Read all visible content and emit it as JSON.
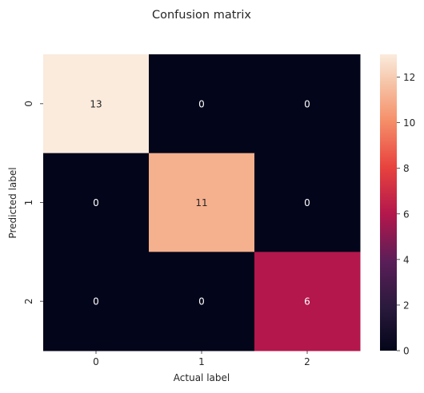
{
  "chart_data": {
    "type": "heatmap",
    "title": "Confusion matrix",
    "xlabel": "Actual label",
    "ylabel": "Predicted label",
    "x_ticks": [
      "0",
      "1",
      "2"
    ],
    "y_ticks": [
      "0",
      "1",
      "2"
    ],
    "matrix": [
      [
        13,
        0,
        0
      ],
      [
        0,
        11,
        0
      ],
      [
        0,
        0,
        6
      ]
    ],
    "colorbar": {
      "min": 0,
      "max": 13,
      "ticks": [
        0,
        2,
        4,
        6,
        8,
        10,
        12
      ]
    },
    "colormap": "rocket",
    "cell_colors": {
      "13": "#faebdd",
      "11": "#f5b08d",
      "6": "#b3174c",
      "0": "#03051a"
    },
    "annotation_colors": {
      "light_cell": "#262626",
      "dark_cell": "#ffffff"
    }
  }
}
